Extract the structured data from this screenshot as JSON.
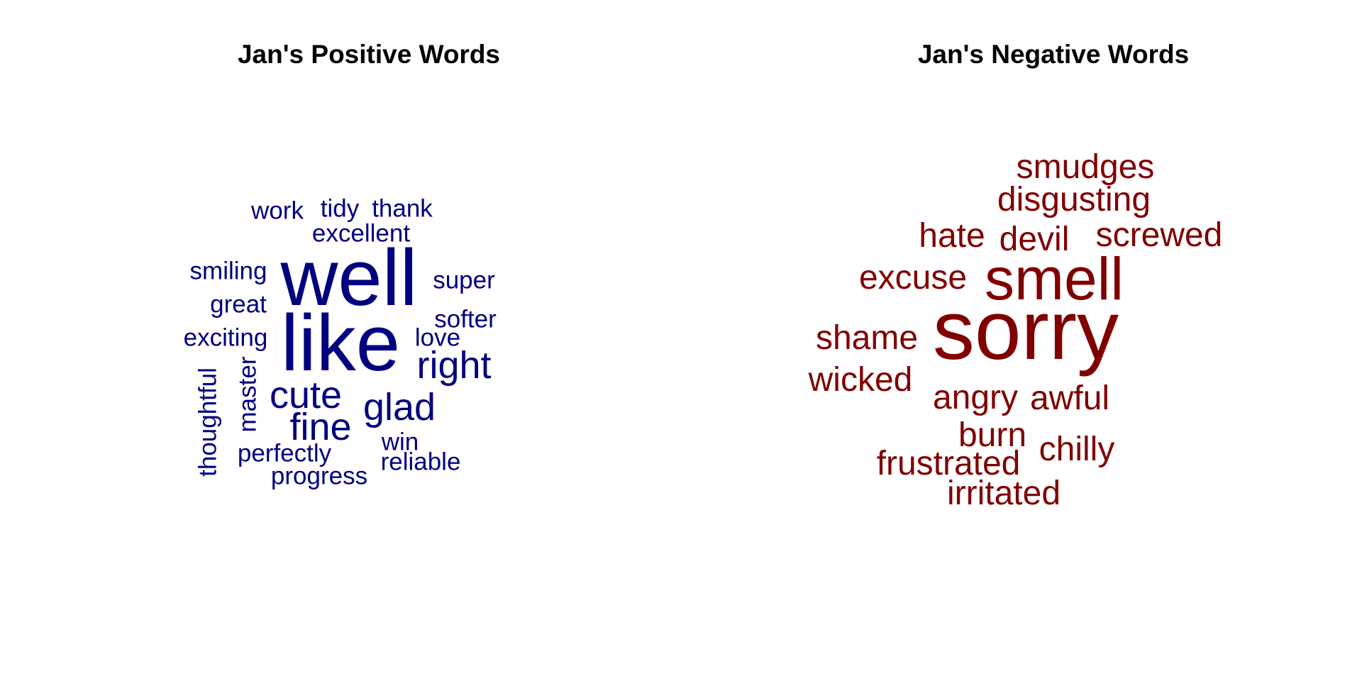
{
  "panels": {
    "positive": {
      "title": "Jan's Positive Words",
      "color": "#000080",
      "words": [
        {
          "text": "well",
          "weight": 10,
          "rotated": false
        },
        {
          "text": "like",
          "weight": 10,
          "rotated": false
        },
        {
          "text": "cute",
          "weight": 5,
          "rotated": false
        },
        {
          "text": "glad",
          "weight": 5,
          "rotated": false
        },
        {
          "text": "right",
          "weight": 5,
          "rotated": false
        },
        {
          "text": "fine",
          "weight": 5,
          "rotated": false
        },
        {
          "text": "work",
          "weight": 3,
          "rotated": false
        },
        {
          "text": "tidy",
          "weight": 3,
          "rotated": false
        },
        {
          "text": "thank",
          "weight": 3,
          "rotated": false
        },
        {
          "text": "excellent",
          "weight": 3,
          "rotated": false
        },
        {
          "text": "smiling",
          "weight": 3,
          "rotated": false
        },
        {
          "text": "super",
          "weight": 3,
          "rotated": false
        },
        {
          "text": "great",
          "weight": 3,
          "rotated": false
        },
        {
          "text": "softer",
          "weight": 3,
          "rotated": false
        },
        {
          "text": "exciting",
          "weight": 3,
          "rotated": false
        },
        {
          "text": "love",
          "weight": 3,
          "rotated": false
        },
        {
          "text": "thoughtful",
          "weight": 3,
          "rotated": true
        },
        {
          "text": "master",
          "weight": 3,
          "rotated": true
        },
        {
          "text": "win",
          "weight": 3,
          "rotated": false
        },
        {
          "text": "perfectly",
          "weight": 3,
          "rotated": false
        },
        {
          "text": "reliable",
          "weight": 3,
          "rotated": false
        },
        {
          "text": "progress",
          "weight": 3,
          "rotated": false
        }
      ]
    },
    "negative": {
      "title": "Jan's Negative Words",
      "color": "#800000",
      "words": [
        {
          "text": "sorry",
          "weight": 10,
          "rotated": false
        },
        {
          "text": "smell",
          "weight": 7,
          "rotated": false
        },
        {
          "text": "smudges",
          "weight": 4,
          "rotated": false
        },
        {
          "text": "disgusting",
          "weight": 4,
          "rotated": false
        },
        {
          "text": "hate",
          "weight": 4,
          "rotated": false
        },
        {
          "text": "devil",
          "weight": 4,
          "rotated": false
        },
        {
          "text": "screwed",
          "weight": 4,
          "rotated": false
        },
        {
          "text": "excuse",
          "weight": 4,
          "rotated": false
        },
        {
          "text": "shame",
          "weight": 4,
          "rotated": false
        },
        {
          "text": "wicked",
          "weight": 4,
          "rotated": false
        },
        {
          "text": "angry",
          "weight": 4,
          "rotated": false
        },
        {
          "text": "awful",
          "weight": 4,
          "rotated": false
        },
        {
          "text": "burn",
          "weight": 4,
          "rotated": false
        },
        {
          "text": "chilly",
          "weight": 4,
          "rotated": false
        },
        {
          "text": "frustrated",
          "weight": 4,
          "rotated": false
        },
        {
          "text": "irritated",
          "weight": 4,
          "rotated": false
        }
      ]
    }
  }
}
